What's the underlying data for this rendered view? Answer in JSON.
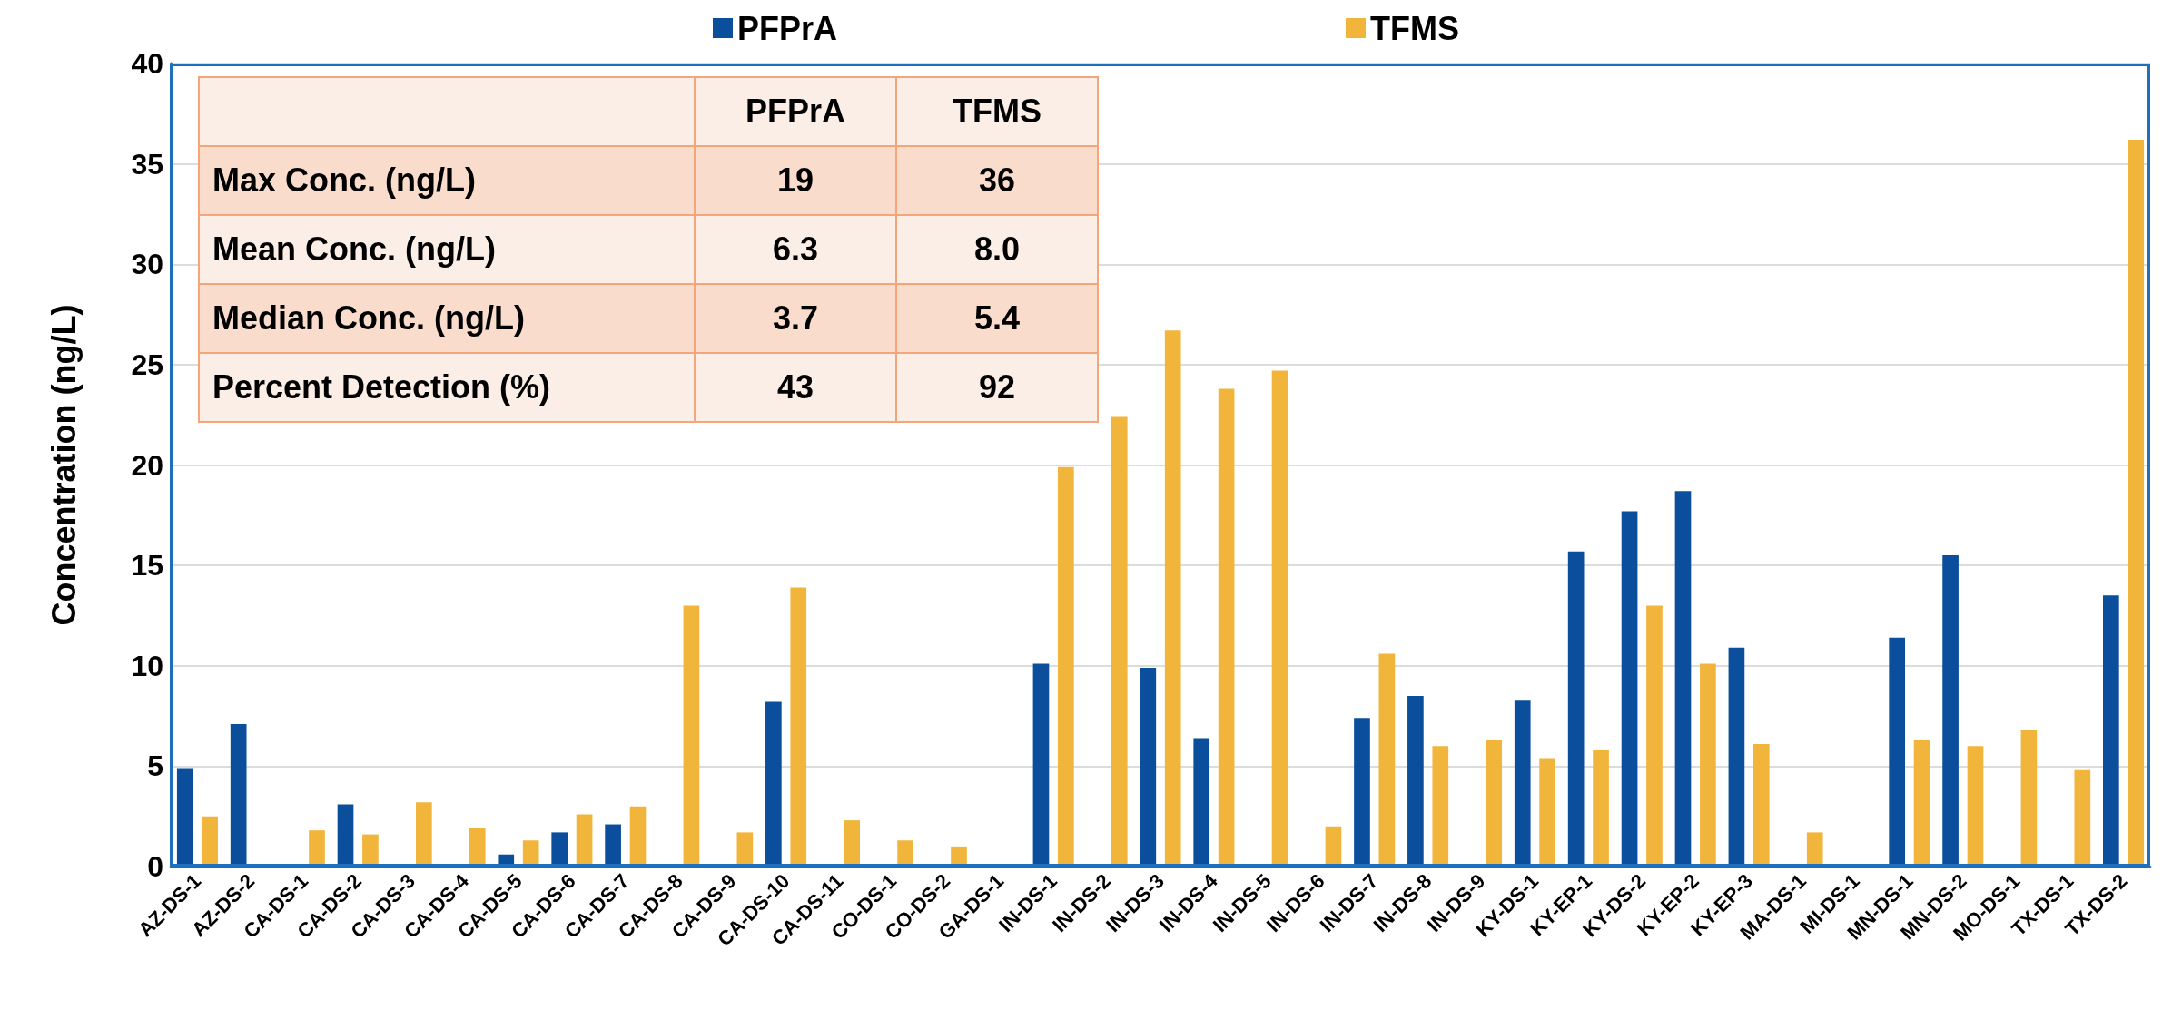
{
  "chart_data": [
    {
      "type": "bar",
      "ylabel": "Concentration (ng/L)",
      "categories": [
        "AZ-DS-1",
        "AZ-DS-2",
        "CA-DS-1",
        "CA-DS-2",
        "CA-DS-3",
        "CA-DS-4",
        "CA-DS-5",
        "CA-DS-6",
        "CA-DS-7",
        "CA-DS-8",
        "CA-DS-9",
        "CA-DS-10",
        "CA-DS-11",
        "CO-DS-1",
        "CO-DS-2",
        "GA-DS-1",
        "IN-DS-1",
        "IN-DS-2",
        "IN-DS-3",
        "IN-DS-4",
        "IN-DS-5",
        "IN-DS-6",
        "IN-DS-7",
        "IN-DS-8",
        "IN-DS-9",
        "KY-DS-1",
        "KY-EP-1",
        "KY-DS-2",
        "KY-EP-2",
        "KY-EP-3",
        "MA-DS-1",
        "MI-DS-1",
        "MN-DS-1",
        "MN-DS-2",
        "MO-DS-1",
        "TX-DS-1",
        "TX-DS-2"
      ],
      "series": [
        {
          "name": "PFPrA",
          "color": "#0b4f9c",
          "values": [
            4.9,
            7.1,
            null,
            3.1,
            null,
            null,
            0.6,
            1.7,
            2.1,
            null,
            null,
            8.2,
            null,
            null,
            null,
            null,
            10.1,
            null,
            9.9,
            6.4,
            null,
            null,
            7.4,
            8.5,
            null,
            8.3,
            15.7,
            17.7,
            18.7,
            10.9,
            null,
            null,
            11.4,
            15.5,
            null,
            null,
            13.5
          ]
        },
        {
          "name": "TFMS",
          "color": "#f2b53c",
          "values": [
            2.5,
            null,
            1.8,
            1.6,
            3.2,
            1.9,
            1.3,
            2.6,
            3.0,
            13.0,
            1.7,
            13.9,
            2.3,
            1.3,
            1.0,
            null,
            19.9,
            22.4,
            26.7,
            23.8,
            24.7,
            2.0,
            10.6,
            6.0,
            6.3,
            5.4,
            5.8,
            13.0,
            10.1,
            6.1,
            1.7,
            null,
            6.3,
            6.0,
            6.8,
            4.8,
            36.2
          ]
        }
      ],
      "ylim": [
        0,
        40
      ],
      "yticks": [
        0,
        5,
        10,
        15,
        20,
        25,
        30,
        35,
        40
      ],
      "grid": "y",
      "legend": "top"
    },
    {
      "type": "other",
      "categories": [
        "PFPrA",
        "TFMS"
      ],
      "y_categories": [
        "Max Conc. (ng/L)",
        "Mean Conc. (ng/L)",
        "Median Conc. (ng/L)",
        "Percent Detection (%)"
      ],
      "cell_labels": [
        [
          "19",
          "36"
        ],
        [
          "6.3",
          "8.0"
        ],
        [
          "3.7",
          "5.4"
        ],
        [
          "43",
          "92"
        ]
      ]
    }
  ]
}
